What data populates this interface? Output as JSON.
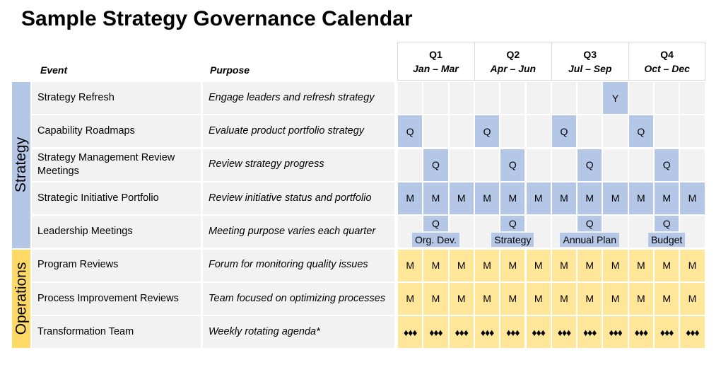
{
  "header": {
    "title": "Sample Strategy Governance Calendar"
  },
  "table": {
    "columns": {
      "event": "Event",
      "purpose": "Purpose"
    },
    "quarters": [
      {
        "label": "Q1",
        "months": "Jan – Mar"
      },
      {
        "label": "Q2",
        "months": "Apr – Jun"
      },
      {
        "label": "Q3",
        "months": "Jul – Sep"
      },
      {
        "label": "Q4",
        "months": "Oct – Dec"
      }
    ],
    "groups": [
      {
        "label": "Strategy",
        "rows": [
          {
            "event": "Strategy Refresh",
            "purpose": "Engage leaders and refresh strategy",
            "cells": [
              null,
              null,
              null,
              null,
              null,
              null,
              null,
              null,
              "Y",
              null,
              null,
              null
            ]
          },
          {
            "event": "Capability Roadmaps",
            "purpose": "Evaluate product portfolio strategy",
            "cells": [
              "Q",
              null,
              null,
              "Q",
              null,
              null,
              "Q",
              null,
              null,
              "Q",
              null,
              null
            ]
          },
          {
            "event": "Strategy Management Review Meetings",
            "purpose": "Review strategy progress",
            "cells": [
              null,
              "Q",
              null,
              null,
              "Q",
              null,
              null,
              "Q",
              null,
              null,
              "Q",
              null
            ]
          },
          {
            "event": "Strategic Initiative Portfolio",
            "purpose": "Review initiative status and portfolio",
            "cells": [
              "M",
              "M",
              "M",
              "M",
              "M",
              "M",
              "M",
              "M",
              "M",
              "M",
              "M",
              "M"
            ]
          },
          {
            "event": "Leadership Meetings",
            "purpose": "Meeting purpose varies each quarter",
            "cells": [
              null,
              "Q",
              null,
              null,
              "Q",
              null,
              null,
              "Q",
              null,
              null,
              "Q",
              null
            ],
            "notes": [
              "Org. Dev.",
              "Strategy",
              "Annual Plan",
              "Budget"
            ]
          }
        ]
      },
      {
        "label": "Operations",
        "rows": [
          {
            "event": "Program Reviews",
            "purpose": "Forum for monitoring quality issues",
            "cells": [
              "M",
              "M",
              "M",
              "M",
              "M",
              "M",
              "M",
              "M",
              "M",
              "M",
              "M",
              "M"
            ]
          },
          {
            "event": "Process Improvement Reviews",
            "purpose": "Team focused on optimizing processes",
            "cells": [
              "M",
              "M",
              "M",
              "M",
              "M",
              "M",
              "M",
              "M",
              "M",
              "M",
              "M",
              "M"
            ]
          },
          {
            "event": "Transformation Team",
            "purpose": "Weekly rotating agenda*",
            "cells": [
              "♦♦♦",
              "♦♦♦",
              "♦♦♦",
              "♦♦♦",
              "♦♦♦",
              "♦♦♦",
              "♦♦♦",
              "♦♦♦",
              "♦♦♦",
              "♦♦♦",
              "♦♦♦",
              "♦♦♦"
            ]
          }
        ]
      }
    ]
  }
}
